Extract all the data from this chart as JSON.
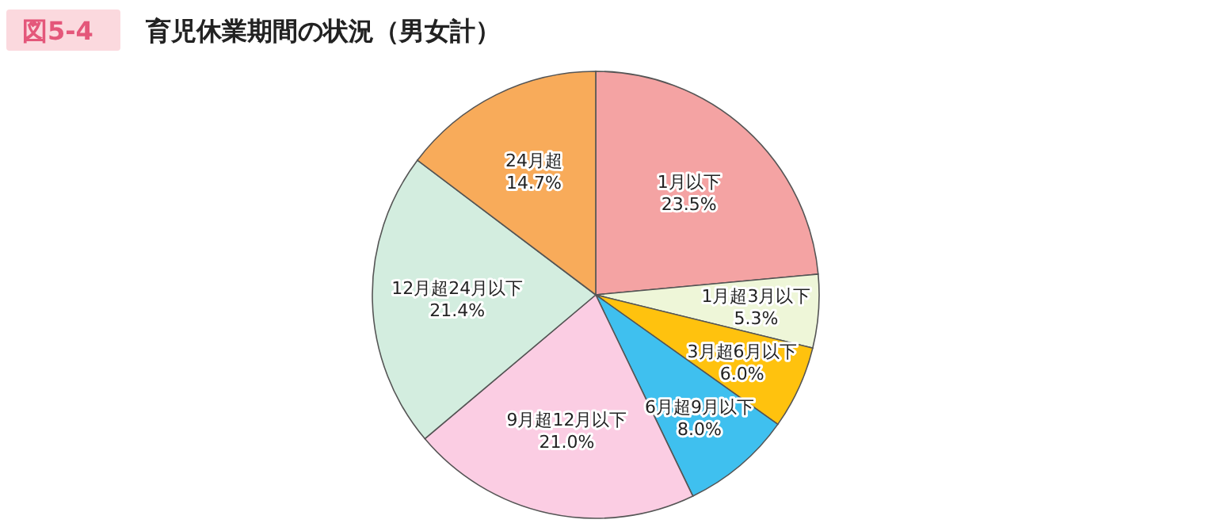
{
  "chart_data": {
    "type": "pie",
    "title": "育児休業期間の状況（男女計）",
    "annotations": [
      "図5-4"
    ],
    "categories": [
      "1月以下",
      "1月超3月以下",
      "3月超6月以下",
      "6月超9月以下",
      "9月超12月以下",
      "12月超24月以下",
      "24月超"
    ],
    "values": [
      23.5,
      5.3,
      6.0,
      8.0,
      21.0,
      21.4,
      14.7
    ],
    "value_labels": [
      "23.5%",
      "5.3%",
      "6.0%",
      "8.0%",
      "21.0%",
      "21.4%",
      "14.7%"
    ],
    "colors": [
      "#f4a3a3",
      "#eef6d8",
      "#ffc20e",
      "#3fc0ef",
      "#fbcde3",
      "#d3eddf",
      "#f8ab5a"
    ]
  }
}
